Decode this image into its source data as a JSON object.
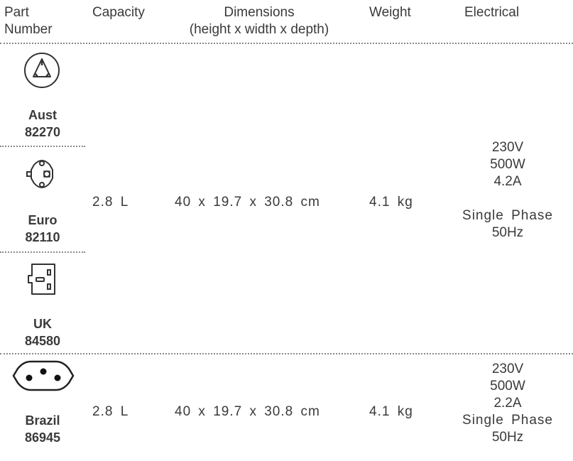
{
  "headers": {
    "part_number_line1": "Part",
    "part_number_line2": "Number",
    "capacity": "Capacity",
    "dimensions_line1": "Dimensions",
    "dimensions_line2": "(height x width x depth)",
    "weight": "Weight",
    "electrical": "Electrical"
  },
  "plugs": {
    "aust": {
      "region": "Aust",
      "part": "82270",
      "icon": "australian-plug-icon"
    },
    "euro": {
      "region": "Euro",
      "part": "82110",
      "icon": "euro-plug-icon"
    },
    "uk": {
      "region": "UK",
      "part": "84580",
      "icon": "uk-plug-icon"
    },
    "brazil": {
      "region": "Brazil",
      "part": "86945",
      "icon": "brazil-plug-icon"
    }
  },
  "group1": {
    "capacity": "2.8 L",
    "dimensions": "40 x 19.7 x 30.8 cm",
    "weight": "4.1 kg",
    "voltage": "230V",
    "power": "500W",
    "current": "4.2A",
    "phase": "Single Phase",
    "frequency": "50Hz"
  },
  "group2": {
    "capacity": "2.8 L",
    "dimensions": "40 x 19.7 x 30.8 cm",
    "weight": "4.1 kg",
    "voltage": "230V",
    "power": "500W",
    "current": "2.2A",
    "phase": "Single Phase",
    "frequency": "50Hz"
  }
}
